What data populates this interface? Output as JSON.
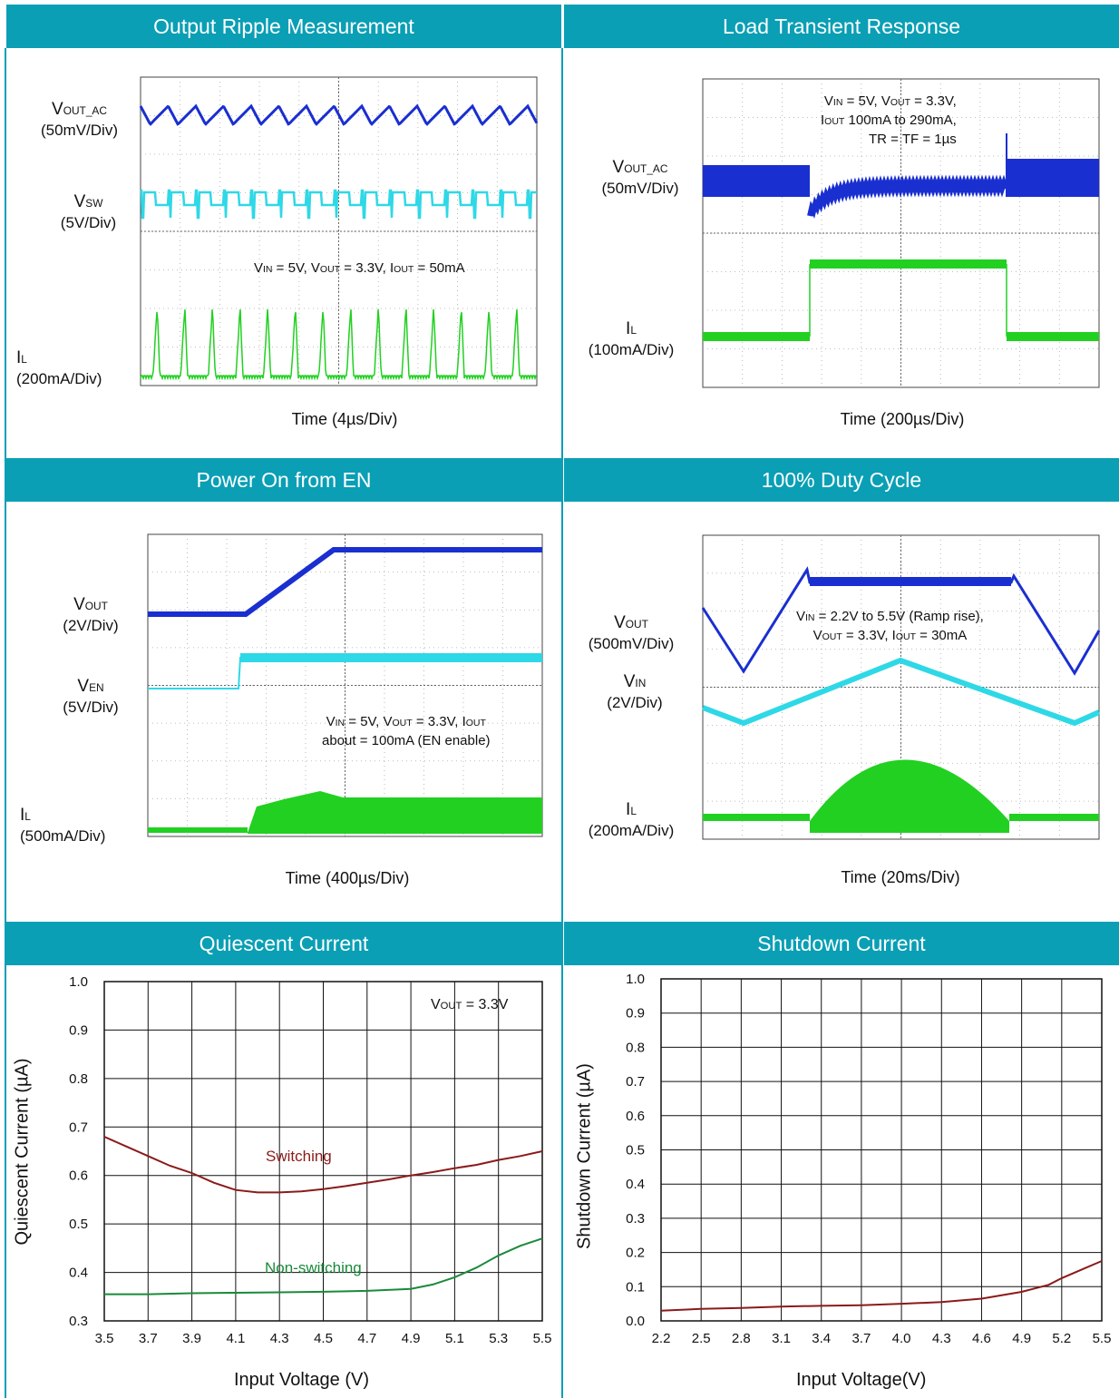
{
  "panels": [
    {
      "title": "Output Ripple Measurement",
      "labels": [
        {
          "main": "V",
          "sub": "OUT_AC",
          "scale": "(50mV/Div)"
        },
        {
          "main": "V",
          "sub": "SW",
          "scale": "(5V/Div)"
        },
        {
          "main": "I",
          "sub": "L",
          "scale": "(200mA/Div)"
        }
      ],
      "note": "V<sub>IN</sub> = 5V, V<sub>OUT</sub> = 3.3V, I<sub>OUT</sub> = 50mA",
      "time": "Time  (4µs/Div)"
    },
    {
      "title": "Load Transient Response",
      "labels": [
        {
          "main": "V",
          "sub": "OUT_AC",
          "scale": "(50mV/Div)"
        },
        {
          "main": "I",
          "sub": "L",
          "scale": "(100mA/Div)"
        }
      ],
      "note": "V<sub>IN</sub> = 5V, V<sub>OUT</sub> = 3.3V,<br>I<sub>OUT</sub> 100mA to 290mA,<br>TR = TF = 1µs",
      "time": "Time  (200µs/Div)"
    },
    {
      "title": "Power On from EN",
      "labels": [
        {
          "main": "V",
          "sub": "OUT",
          "scale": "(2V/Div)"
        },
        {
          "main": "V",
          "sub": "EN",
          "scale": "(5V/Div)"
        },
        {
          "main": "I",
          "sub": "L",
          "scale": "(500mA/Div)"
        }
      ],
      "note": "V<sub>IN</sub> = 5V, V<sub>OUT</sub> = 3.3V, I<sub>OUT</sub><br>about = 100mA (EN enable)",
      "time": "Time  (400µs/Div)"
    },
    {
      "title": "100% Duty Cycle",
      "labels": [
        {
          "main": "V",
          "sub": "OUT",
          "scale": "(500mV/Div)"
        },
        {
          "main": "V",
          "sub": "IN",
          "scale": "(2V/Div)"
        },
        {
          "main": "I",
          "sub": "L",
          "scale": "(200mA/Div)"
        }
      ],
      "note": "V<sub>IN</sub> = 2.2V to 5.5V (Ramp rise),<br>V<sub>OUT</sub> = 3.3V, I<sub>OUT</sub> = 30mA",
      "time": "Time  (20ms/Div)"
    },
    {
      "title": "Quiescent Current"
    },
    {
      "title": "Shutdown Current"
    }
  ],
  "chart_data": [
    {
      "type": "line",
      "title": "Quiescent Current",
      "xlabel": "Input Voltage (V)",
      "ylabel": "Quiescent Current (µA)",
      "xlim": [
        3.5,
        5.5
      ],
      "ylim": [
        0.3,
        1.0
      ],
      "xticks": [
        "3.5",
        "3.7",
        "3.9",
        "4.1",
        "4.3",
        "4.5",
        "4.7",
        "4.9",
        "5.1",
        "5.3",
        "5.5"
      ],
      "yticks": [
        "0.3",
        "0.4",
        "0.5",
        "0.6",
        "0.7",
        "0.8",
        "0.9",
        "1.0"
      ],
      "annotation": "V<sub>OUT</sub> = 3.3V",
      "grid": true,
      "series": [
        {
          "name": "Switching",
          "color": "#8b1a1a",
          "x": [
            3.5,
            3.6,
            3.7,
            3.8,
            3.9,
            4.0,
            4.1,
            4.2,
            4.3,
            4.4,
            4.5,
            4.6,
            4.7,
            4.8,
            4.9,
            5.0,
            5.1,
            5.2,
            5.3,
            5.4,
            5.5
          ],
          "y": [
            0.68,
            0.66,
            0.64,
            0.62,
            0.605,
            0.585,
            0.57,
            0.565,
            0.565,
            0.567,
            0.572,
            0.578,
            0.585,
            0.592,
            0.6,
            0.607,
            0.615,
            0.622,
            0.632,
            0.64,
            0.65
          ]
        },
        {
          "name": "Non-switching",
          "color": "#1a8a3a",
          "x": [
            3.5,
            3.7,
            3.9,
            4.1,
            4.3,
            4.5,
            4.7,
            4.9,
            5.0,
            5.1,
            5.2,
            5.3,
            5.4,
            5.5
          ],
          "y": [
            0.355,
            0.355,
            0.357,
            0.358,
            0.359,
            0.36,
            0.362,
            0.366,
            0.375,
            0.39,
            0.41,
            0.435,
            0.455,
            0.47
          ]
        }
      ]
    },
    {
      "type": "line",
      "title": "Shutdown Current",
      "xlabel": "Input Voltage(V)",
      "ylabel": "Shutdown Current (µA)",
      "xlim": [
        2.2,
        5.5
      ],
      "ylim": [
        0.0,
        1.0
      ],
      "xticks": [
        "2.2",
        "2.5",
        "2.8",
        "3.1",
        "3.4",
        "3.7",
        "4.0",
        "4.3",
        "4.6",
        "4.9",
        "5.2",
        "5.5"
      ],
      "yticks": [
        "0.0",
        "0.1",
        "0.2",
        "0.3",
        "0.4",
        "0.5",
        "0.6",
        "0.7",
        "0.8",
        "0.9",
        "1.0"
      ],
      "grid": true,
      "series": [
        {
          "name": "",
          "color": "#8b1a1a",
          "x": [
            2.2,
            2.5,
            2.8,
            3.1,
            3.4,
            3.7,
            4.0,
            4.3,
            4.6,
            4.9,
            5.1,
            5.2,
            5.35,
            5.5
          ],
          "y": [
            0.03,
            0.035,
            0.038,
            0.042,
            0.044,
            0.046,
            0.05,
            0.055,
            0.065,
            0.085,
            0.105,
            0.125,
            0.15,
            0.175
          ]
        }
      ]
    }
  ]
}
